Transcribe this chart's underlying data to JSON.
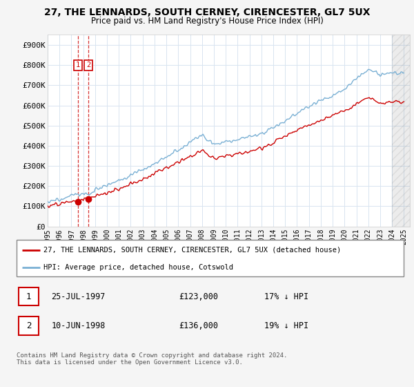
{
  "title": "27, THE LENNARDS, SOUTH CERNEY, CIRENCESTER, GL7 5UX",
  "subtitle": "Price paid vs. HM Land Registry's House Price Index (HPI)",
  "ylim": [
    0,
    950000
  ],
  "yticks": [
    0,
    100000,
    200000,
    300000,
    400000,
    500000,
    600000,
    700000,
    800000,
    900000
  ],
  "ytick_labels": [
    "£0",
    "£100K",
    "£200K",
    "£300K",
    "£400K",
    "£500K",
    "£600K",
    "£700K",
    "£800K",
    "£900K"
  ],
  "sale1_x": 1997.56,
  "sale1_y": 123000,
  "sale2_x": 1998.44,
  "sale2_y": 136000,
  "legend_line1": "27, THE LENNARDS, SOUTH CERNEY, CIRENCESTER, GL7 5UX (detached house)",
  "legend_line2": "HPI: Average price, detached house, Cotswold",
  "footer": "Contains HM Land Registry data © Crown copyright and database right 2024.\nThis data is licensed under the Open Government Licence v3.0.",
  "red_color": "#cc0000",
  "blue_color": "#7ab0d4",
  "grid_color": "#d8e4f0",
  "bg_color": "#ffffff",
  "xmin": 1995.0,
  "xmax": 2025.5,
  "hatch_start": 2024.0,
  "label1_text": "25-JUL-1997",
  "label2_text": "10-JUN-1998",
  "price1_text": "£123,000",
  "price2_text": "£136,000",
  "pct1_text": "17% ↓ HPI",
  "pct2_text": "19% ↓ HPI"
}
